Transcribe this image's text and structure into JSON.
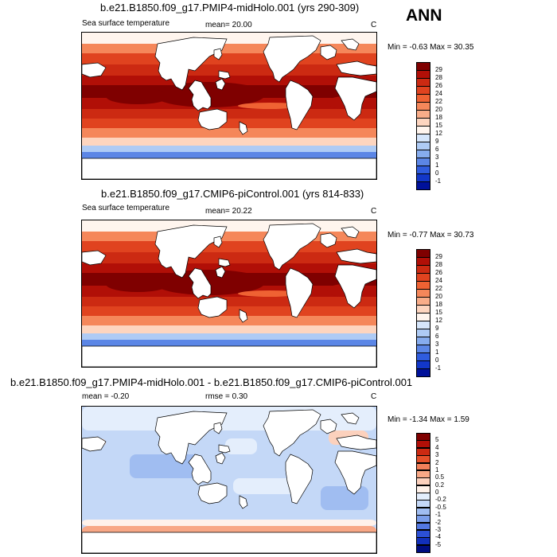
{
  "season": "ANN",
  "panels": [
    {
      "title": "b.e21.B1850.f09_g17.PMIP4-midHolo.001 (yrs 290-309)",
      "variable": "Sea surface temperature",
      "stat": "mean=  20.00",
      "units": "C",
      "minmax": "Min =  -0.63 Max =  30.35",
      "kind": "sst",
      "colorbar": {
        "labels": [
          "29",
          "28",
          "26",
          "24",
          "22",
          "20",
          "18",
          "15",
          "12",
          "9",
          "6",
          "3",
          "1",
          "0",
          "-1"
        ],
        "colors": [
          "#7f0000",
          "#b10f07",
          "#cc2a12",
          "#e0431f",
          "#ef6233",
          "#f5875a",
          "#f9ad89",
          "#fdd5bf",
          "#fff5ee",
          "#d6e6fb",
          "#aecbf5",
          "#86acee",
          "#5b86e6",
          "#2f5cde",
          "#1237c9",
          "#00119a"
        ]
      }
    },
    {
      "title": "b.e21.B1850.f09_g17.CMIP6-piControl.001 (yrs 814-833)",
      "variable": "Sea surface temperature",
      "stat": "mean=  20.22",
      "units": "C",
      "minmax": "Min =  -0.77 Max =  30.73",
      "kind": "sst",
      "colorbar": {
        "labels": [
          "29",
          "28",
          "26",
          "24",
          "22",
          "20",
          "18",
          "15",
          "12",
          "9",
          "6",
          "3",
          "1",
          "0",
          "-1"
        ],
        "colors": [
          "#7f0000",
          "#b10f07",
          "#cc2a12",
          "#e0431f",
          "#ef6233",
          "#f5875a",
          "#f9ad89",
          "#fdd5bf",
          "#fff5ee",
          "#d6e6fb",
          "#aecbf5",
          "#86acee",
          "#5b86e6",
          "#2f5cde",
          "#1237c9",
          "#00119a"
        ]
      }
    },
    {
      "title": "b.e21.B1850.f09_g17.PMIP4-midHolo.001 - b.e21.B1850.f09_g17.CMIP6-piControl.001",
      "variable": "",
      "stat": "mean =  -0.20",
      "stat2": "rmse =   0.30",
      "units": "C",
      "minmax": "Min =  -1.34 Max =   1.59",
      "kind": "diff",
      "colorbar": {
        "labels": [
          "5",
          "4",
          "3",
          "2",
          "1",
          "0.5",
          "0.2",
          "0",
          "-0.2",
          "-0.5",
          "-1",
          "-2",
          "-3",
          "-4",
          "-5"
        ],
        "colors": [
          "#7f0000",
          "#b10f07",
          "#cc2a12",
          "#e5502a",
          "#f2805a",
          "#f8a886",
          "#fcd1bd",
          "#fff2ea",
          "#e4eefc",
          "#c4d8f7",
          "#a0bdf1",
          "#7b9eea",
          "#5378e2",
          "#2c50d6",
          "#1230bb",
          "#000d80"
        ]
      }
    }
  ]
}
